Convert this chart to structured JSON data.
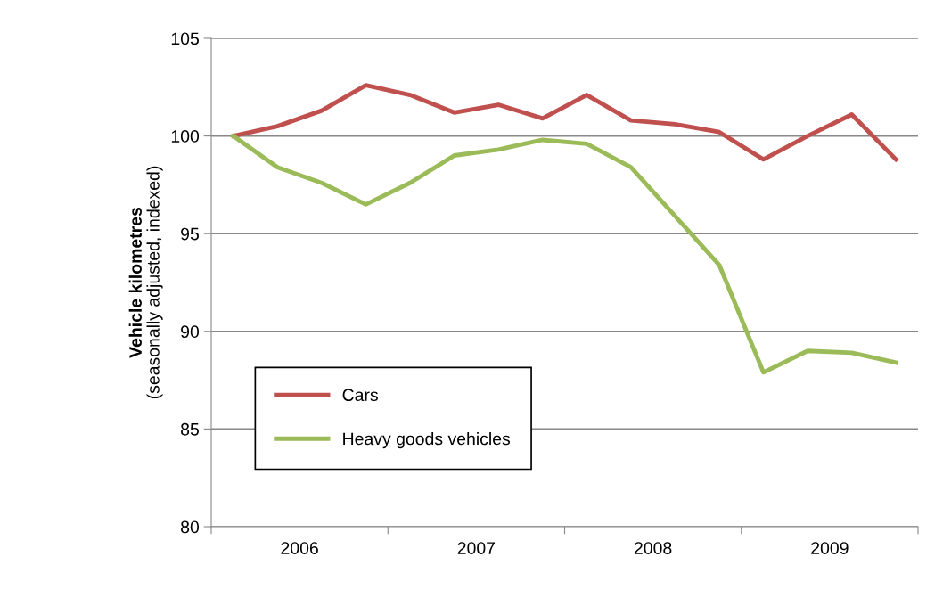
{
  "chart_data": {
    "type": "line",
    "ylabel": "Vehicle kilometres\n(seasonally adjusted, indexed)",
    "x": [
      2006.125,
      2006.375,
      2006.625,
      2006.875,
      2007.125,
      2007.375,
      2007.625,
      2007.875,
      2008.125,
      2008.375,
      2008.625,
      2008.875,
      2009.125,
      2009.375,
      2009.625,
      2009.875
    ],
    "series": [
      {
        "name": "Cars",
        "color": "#c0504d",
        "values": [
          100,
          100.5,
          101.3,
          102.6,
          102.1,
          101.2,
          101.6,
          100.9,
          102.1,
          100.8,
          100.6,
          100.2,
          98.8,
          100.0,
          101.1,
          98.8
        ]
      },
      {
        "name": "Heavy goods vehicles",
        "color": "#9bbb59",
        "values": [
          100,
          98.4,
          97.6,
          96.5,
          97.6,
          99.0,
          99.3,
          99.8,
          99.6,
          98.4,
          95.9,
          93.4,
          87.9,
          89.0,
          88.9,
          88.4
        ]
      }
    ],
    "xlim": [
      2006,
      2010
    ],
    "xticks": [
      {
        "value": 2006,
        "label": null
      },
      {
        "value": 2006.5,
        "label": "2006"
      },
      {
        "value": 2007,
        "label": null
      },
      {
        "value": 2007.5,
        "label": "2007"
      },
      {
        "value": 2008,
        "label": null
      },
      {
        "value": 2008.5,
        "label": "2008"
      },
      {
        "value": 2009,
        "label": null
      },
      {
        "value": 2009.5,
        "label": "2009"
      },
      {
        "value": 2010,
        "label": null
      }
    ],
    "ylim": [
      80,
      105
    ],
    "yticks": [
      80,
      85,
      90,
      95,
      100,
      105
    ],
    "grid": "y",
    "legend": "bottom left",
    "line_style": "solid",
    "marker": "none"
  }
}
